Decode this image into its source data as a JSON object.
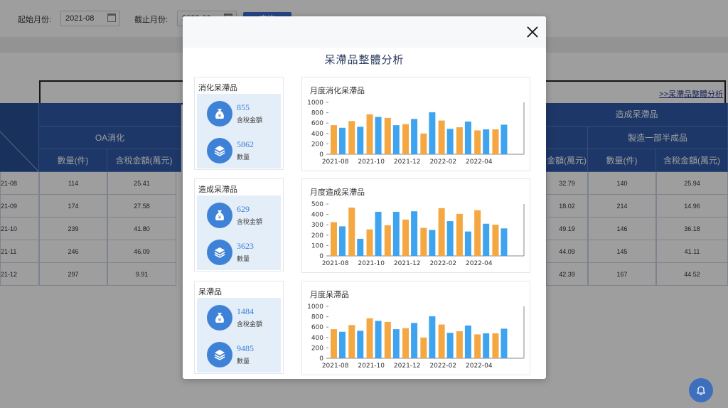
{
  "filters": {
    "start_label": "起始月份:",
    "start_value": "2021-08",
    "end_label": "截止月份:",
    "end_value": "2022-06",
    "query_label": "查询"
  },
  "link_text": ">>呆滯品整體分析",
  "table": {
    "groups": [
      {
        "label": "OA消化",
        "columns": [
          "數量(件)",
          "含稅金額(萬元)"
        ]
      },
      {
        "label": "造成呆滯品",
        "columns": []
      },
      {
        "label": "製造一部半成品",
        "columns": [
          "數量(件)",
          "含稅金額(萬元)"
        ]
      }
    ],
    "partial_col_label": "金額(萬元)",
    "rows": [
      {
        "month": "21-08",
        "a": "114",
        "b": "25.41",
        "c": "32.79",
        "d": "140",
        "e": "25.94"
      },
      {
        "month": "21-09",
        "a": "174",
        "b": "27.58",
        "c": "18.02",
        "d": "214",
        "e": "14.96"
      },
      {
        "month": "21-10",
        "a": "239",
        "b": "41.80",
        "c": "49.19",
        "d": "146",
        "e": "36.18"
      },
      {
        "month": "21-11",
        "a": "246",
        "b": "46.09",
        "c": "44.09",
        "d": "145",
        "e": "41.11"
      },
      {
        "month": "21-12",
        "a": "297",
        "b": "9.91",
        "c": "42.39",
        "d": "167",
        "e": "44.52"
      }
    ]
  },
  "modal": {
    "title": "呆滯品整體分析",
    "cards": [
      {
        "title": "消化呆滯品",
        "amount": "855",
        "amount_label": "含稅金額",
        "qty": "5862",
        "qty_label": "數量"
      },
      {
        "title": "造成呆滯品",
        "amount": "629",
        "amount_label": "含稅金額",
        "qty": "3623",
        "qty_label": "數量"
      },
      {
        "title": "呆滯品",
        "amount": "1484",
        "amount_label": "含稅金額",
        "qty": "9485",
        "qty_label": "數量"
      }
    ]
  },
  "colors": {
    "orange": "#f5a742",
    "blue": "#3fa4ef"
  },
  "chart_data": [
    {
      "type": "bar",
      "title": "月度消化呆滯品",
      "ylim": [
        0,
        1000
      ],
      "yticks": [
        0,
        200,
        400,
        600,
        800,
        1000
      ],
      "categories": [
        "2021-08",
        "2021-09",
        "2021-10",
        "2021-11",
        "2021-12",
        "2022-01",
        "2022-02",
        "2022-03",
        "2022-04",
        "2022-05",
        "2022-06"
      ],
      "xtick_labels": [
        "2021-08",
        "2021-10",
        "2021-12",
        "2022-02",
        "2022-04"
      ],
      "series": [
        {
          "values": [
            560,
            640,
            770,
            700,
            580,
            400,
            650,
            520,
            460,
            480,
            0
          ]
        },
        {
          "values": [
            510,
            530,
            720,
            560,
            680,
            810,
            490,
            630,
            480,
            570,
            0
          ]
        }
      ]
    },
    {
      "type": "bar",
      "title": "月度造成呆滯品",
      "ylim": [
        0,
        500
      ],
      "yticks": [
        0,
        100,
        200,
        300,
        400,
        500
      ],
      "categories": [
        "2021-08",
        "2021-09",
        "2021-10",
        "2021-11",
        "2021-12",
        "2022-01",
        "2022-02",
        "2022-03",
        "2022-04",
        "2022-05",
        "2022-06"
      ],
      "xtick_labels": [
        "2021-08",
        "2021-10",
        "2021-12",
        "2022-02",
        "2022-04"
      ],
      "series": [
        {
          "values": [
            325,
            465,
            255,
            295,
            350,
            270,
            460,
            405,
            440,
            300,
            0
          ]
        },
        {
          "values": [
            285,
            165,
            425,
            425,
            430,
            250,
            335,
            235,
            310,
            265,
            0
          ]
        }
      ]
    },
    {
      "type": "bar",
      "title": "月度呆滯品",
      "ylim": [
        0,
        1000
      ],
      "yticks": [
        0,
        200,
        400,
        600,
        800,
        1000
      ],
      "categories": [
        "2021-08",
        "2021-09",
        "2021-10",
        "2021-11",
        "2021-12",
        "2022-01",
        "2022-02",
        "2022-03",
        "2022-04",
        "2022-05",
        "2022-06"
      ],
      "xtick_labels": [
        "2021-08",
        "2021-10",
        "2021-12",
        "2022-02",
        "2022-04"
      ],
      "series": [
        {
          "values": [
            560,
            640,
            770,
            700,
            580,
            400,
            650,
            520,
            460,
            480,
            0
          ]
        },
        {
          "values": [
            510,
            530,
            720,
            560,
            680,
            810,
            490,
            630,
            480,
            570,
            0
          ]
        }
      ]
    }
  ]
}
